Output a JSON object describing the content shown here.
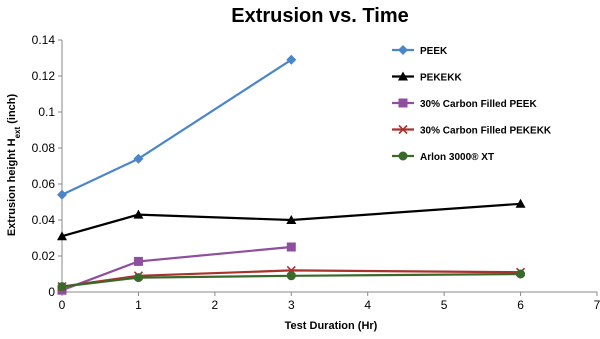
{
  "chart_data": {
    "type": "line",
    "title": "Extrusion vs. Time",
    "xlabel": "Test Duration (Hr)",
    "ylabel": "Extrusion height H_ext (inch)",
    "ylabel_main": "Extrusion height H",
    "ylabel_sub": "ext",
    "ylabel_tail": " (inch)",
    "xlim": [
      0,
      7
    ],
    "ylim": [
      0,
      0.14
    ],
    "xticks": [
      "0",
      "1",
      "2",
      "3",
      "4",
      "5",
      "6",
      "7"
    ],
    "yticks": [
      "0",
      "0.02",
      "0.04",
      "0.06",
      "0.08",
      "0.1",
      "0.12",
      "0.14"
    ],
    "grid": false,
    "legend_position": "right",
    "series": [
      {
        "name": "PEEK",
        "color": "#4a86c8",
        "marker": "diamond",
        "x": [
          0,
          1,
          3
        ],
        "y": [
          0.054,
          0.074,
          0.129
        ]
      },
      {
        "name": "PEKEKK",
        "color": "#000000",
        "marker": "triangle",
        "x": [
          0,
          1,
          3,
          6
        ],
        "y": [
          0.031,
          0.043,
          0.04,
          0.049
        ]
      },
      {
        "name": "30% Carbon Filled PEEK",
        "color": "#8e4f9e",
        "marker": "square",
        "x": [
          0,
          1,
          3
        ],
        "y": [
          0.001,
          0.017,
          0.025
        ]
      },
      {
        "name": "30% Carbon Filled PEKEKK",
        "color": "#a8322c",
        "marker": "x",
        "x": [
          0,
          1,
          3,
          6
        ],
        "y": [
          0.003,
          0.009,
          0.012,
          0.011
        ]
      },
      {
        "name": "Arlon 3000® XT",
        "color": "#3a6a2b",
        "marker": "circle",
        "x": [
          0,
          1,
          3,
          6
        ],
        "y": [
          0.003,
          0.008,
          0.009,
          0.01
        ]
      }
    ]
  }
}
